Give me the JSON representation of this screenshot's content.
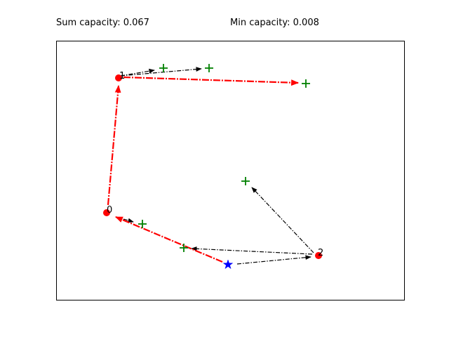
{
  "stats": {
    "sum_capacity": "Sum capacity: 0.067",
    "min_capacity": "Min capacity: 0.008"
  },
  "nodes": [
    {
      "id": "0",
      "label": "0"
    },
    {
      "id": "1",
      "label": "1"
    },
    {
      "id": "2",
      "label": "2"
    }
  ],
  "colors": {
    "node": "#ff0000",
    "target": "#008000",
    "source": "#0000ff",
    "main_path": "#ff0000",
    "link": "#000000"
  },
  "legend_icons": {
    "node": "red-circle-node-icon",
    "target": "green-plus-target-icon",
    "source": "blue-star-source-icon"
  }
}
